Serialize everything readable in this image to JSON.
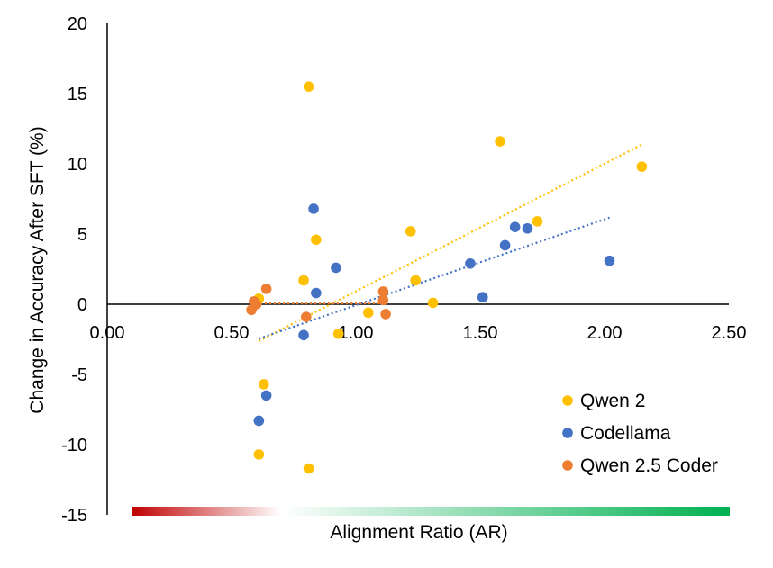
{
  "chart_data": {
    "type": "scatter",
    "xlabel": "Alignment Ratio (AR)",
    "ylabel": "Change in Accuracy After SFT (%)",
    "xlim": [
      0,
      2.5
    ],
    "ylim": [
      -15,
      20
    ],
    "x_ticks": [
      "0.00",
      "0.50",
      "1.00",
      "1.50",
      "2.00",
      "2.50"
    ],
    "y_ticks": [
      "20",
      "15",
      "10",
      "5",
      "0",
      "-5",
      "-10",
      "-15"
    ],
    "grid": false,
    "legend_position": "bottom-right",
    "gradient_colors": [
      "#c00000",
      "#ffffff",
      "#00b050"
    ],
    "series": [
      {
        "name": "Qwen 2",
        "color": "#ffc000",
        "trendline": true,
        "points": [
          [
            0.61,
            0.4
          ],
          [
            0.63,
            -5.7
          ],
          [
            0.61,
            -10.7
          ],
          [
            0.79,
            1.7
          ],
          [
            0.81,
            15.5
          ],
          [
            0.81,
            -11.7
          ],
          [
            0.84,
            4.6
          ],
          [
            0.93,
            -2.1
          ],
          [
            1.05,
            -0.6
          ],
          [
            1.22,
            5.2
          ],
          [
            1.24,
            1.7
          ],
          [
            1.31,
            0.1
          ],
          [
            1.58,
            11.6
          ],
          [
            1.73,
            5.9
          ],
          [
            2.15,
            9.8
          ]
        ]
      },
      {
        "name": "Codellama",
        "color": "#4472c4",
        "trendline": true,
        "points": [
          [
            0.61,
            -8.3
          ],
          [
            0.64,
            -6.5
          ],
          [
            0.79,
            -2.2
          ],
          [
            0.83,
            6.8
          ],
          [
            0.84,
            0.8
          ],
          [
            0.92,
            2.6
          ],
          [
            1.46,
            2.9
          ],
          [
            1.51,
            0.5
          ],
          [
            1.6,
            4.2
          ],
          [
            1.64,
            5.5
          ],
          [
            1.69,
            5.4
          ],
          [
            2.02,
            3.1
          ]
        ]
      },
      {
        "name": "Qwen 2.5 Coder",
        "color": "#ed7d31",
        "trendline": true,
        "points": [
          [
            0.58,
            -0.4
          ],
          [
            0.59,
            0.2
          ],
          [
            0.6,
            0.0
          ],
          [
            0.64,
            1.1
          ],
          [
            0.8,
            -0.9
          ],
          [
            1.11,
            0.9
          ],
          [
            1.11,
            0.3
          ],
          [
            1.12,
            -0.7
          ]
        ]
      }
    ]
  }
}
